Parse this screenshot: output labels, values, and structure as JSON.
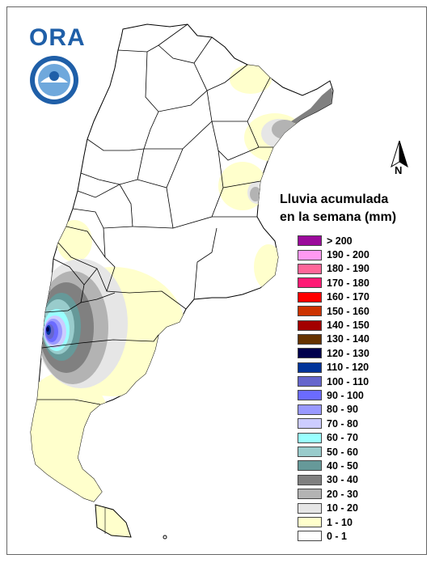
{
  "logo": {
    "text": "ORA"
  },
  "north_arrow": {
    "label": "N"
  },
  "legend": {
    "title_line1": "Lluvia acumulada",
    "title_line2": "en la semana (mm)",
    "classes": [
      {
        "label": "> 200",
        "color": "#9b0a9b"
      },
      {
        "label": "190 - 200",
        "color": "#ff99f2"
      },
      {
        "label": "180 - 190",
        "color": "#ff6699"
      },
      {
        "label": "170 - 180",
        "color": "#ff1a75"
      },
      {
        "label": "160 - 170",
        "color": "#ff0000"
      },
      {
        "label": "150 - 160",
        "color": "#cc3300"
      },
      {
        "label": "140 - 150",
        "color": "#a30000"
      },
      {
        "label": "130 - 140",
        "color": "#663300"
      },
      {
        "label": "120 - 130",
        "color": "#00004d"
      },
      {
        "label": "110 - 120",
        "color": "#003399"
      },
      {
        "label": "100 - 110",
        "color": "#6666cc"
      },
      {
        "label": "90 - 100",
        "color": "#6b6bff"
      },
      {
        "label": "80 - 90",
        "color": "#9999ff"
      },
      {
        "label": "70 - 80",
        "color": "#ccccff"
      },
      {
        "label": "60 - 70",
        "color": "#99ffff"
      },
      {
        "label": "50 - 60",
        "color": "#99cccc"
      },
      {
        "label": "40 - 50",
        "color": "#669999"
      },
      {
        "label": "30 - 40",
        "color": "#808080"
      },
      {
        "label": "20 - 30",
        "color": "#b3b3b3"
      },
      {
        "label": "10 - 20",
        "color": "#e6e6e6"
      },
      {
        "label": "1 - 10",
        "color": "#ffffcc"
      },
      {
        "label": "0 - 1",
        "color": "#ffffff"
      }
    ]
  }
}
